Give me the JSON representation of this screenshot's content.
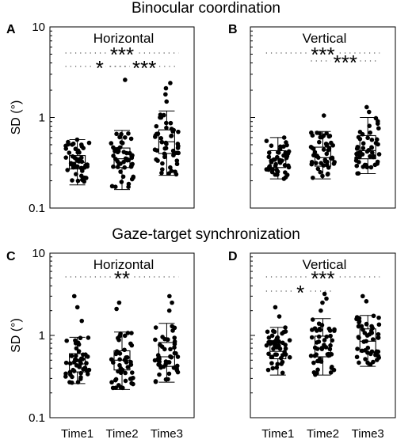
{
  "figure": {
    "row_titles": [
      "Binocular coordination",
      "Gaze-target synchronization"
    ]
  },
  "chart_data": [
    {
      "type": "box",
      "panel": "A",
      "row_title": "Binocular coordination",
      "title": "Horizontal",
      "ylabel": "SD (°)",
      "yscale": "log",
      "ylim": [
        0.1,
        10
      ],
      "yticks": [
        "0.1",
        "1",
        "10"
      ],
      "categories": [
        "Time1",
        "Time2",
        "Time3"
      ],
      "boxes": [
        {
          "whisker_low": 0.18,
          "q1": 0.27,
          "median": 0.32,
          "q3": 0.38,
          "whisker_high": 0.57
        },
        {
          "whisker_low": 0.16,
          "q1": 0.28,
          "median": 0.35,
          "q3": 0.46,
          "whisker_high": 0.72
        },
        {
          "whisker_low": 0.23,
          "q1": 0.4,
          "median": 0.54,
          "q3": 0.73,
          "whisker_high": 1.18
        }
      ],
      "outliers": [
        [],
        [
          2.6
        ],
        [
          1.5,
          1.8,
          2.1,
          2.4
        ]
      ],
      "significance": [
        {
          "from": "Time1",
          "to": "Time3",
          "stars": "***"
        },
        {
          "from": "Time1",
          "to": "Time2",
          "stars": "*"
        },
        {
          "from": "Time2",
          "to": "Time3",
          "stars": "***"
        }
      ]
    },
    {
      "type": "box",
      "panel": "B",
      "title": "Vertical",
      "yscale": "log",
      "ylim": [
        0.1,
        10
      ],
      "categories": [
        "Time1",
        "Time2",
        "Time3"
      ],
      "boxes": [
        {
          "whisker_low": 0.21,
          "q1": 0.28,
          "median": 0.34,
          "q3": 0.43,
          "whisker_high": 0.6
        },
        {
          "whisker_low": 0.21,
          "q1": 0.29,
          "median": 0.36,
          "q3": 0.47,
          "whisker_high": 0.7
        },
        {
          "whisker_low": 0.24,
          "q1": 0.35,
          "median": 0.43,
          "q3": 0.63,
          "whisker_high": 1.0
        }
      ],
      "outliers": [
        [],
        [
          1.05
        ],
        [
          1.15,
          1.3
        ]
      ],
      "significance": [
        {
          "from": "Time1",
          "to": "Time3",
          "stars": "***"
        },
        {
          "from": "Time2",
          "to": "Time3",
          "stars": "***"
        }
      ]
    },
    {
      "type": "box",
      "panel": "C",
      "row_title": "Gaze-target synchronization",
      "title": "Horizontal",
      "ylabel": "SD (°)",
      "yscale": "log",
      "ylim": [
        0.1,
        10
      ],
      "yticks": [
        "0.1",
        "1",
        "10"
      ],
      "xlabels_shown": true,
      "categories": [
        "Time1",
        "Time2",
        "Time3"
      ],
      "boxes": [
        {
          "whisker_low": 0.26,
          "q1": 0.36,
          "median": 0.45,
          "q3": 0.6,
          "whisker_high": 0.95
        },
        {
          "whisker_low": 0.22,
          "q1": 0.38,
          "median": 0.5,
          "q3": 0.65,
          "whisker_high": 1.1
        },
        {
          "whisker_low": 0.27,
          "q1": 0.42,
          "median": 0.55,
          "q3": 0.82,
          "whisker_high": 1.4
        }
      ],
      "outliers": [
        [
          1.5,
          2.2,
          3.0
        ],
        [
          2.1,
          2.5
        ],
        [
          2.0,
          2.5,
          3.0
        ]
      ],
      "significance": [
        {
          "from": "Time1",
          "to": "Time3",
          "stars": "**"
        }
      ]
    },
    {
      "type": "box",
      "panel": "D",
      "title": "Vertical",
      "yscale": "log",
      "ylim": [
        0.1,
        10
      ],
      "xlabels_shown": true,
      "categories": [
        "Time1",
        "Time2",
        "Time3"
      ],
      "boxes": [
        {
          "whisker_low": 0.33,
          "q1": 0.52,
          "median": 0.64,
          "q3": 0.8,
          "whisker_high": 1.25
        },
        {
          "whisker_low": 0.33,
          "q1": 0.55,
          "median": 0.7,
          "q3": 0.98,
          "whisker_high": 1.6
        },
        {
          "whisker_low": 0.42,
          "q1": 0.63,
          "median": 0.85,
          "q3": 1.2,
          "whisker_high": 1.75
        }
      ],
      "outliers": [
        [
          1.7,
          2.2
        ],
        [
          2.0,
          2.5,
          2.8,
          3.2
        ],
        [
          2.6,
          3.0
        ]
      ],
      "significance": [
        {
          "from": "Time1",
          "to": "Time3",
          "stars": "***"
        },
        {
          "from": "Time1",
          "to": "Time2",
          "stars": "*"
        }
      ]
    }
  ]
}
